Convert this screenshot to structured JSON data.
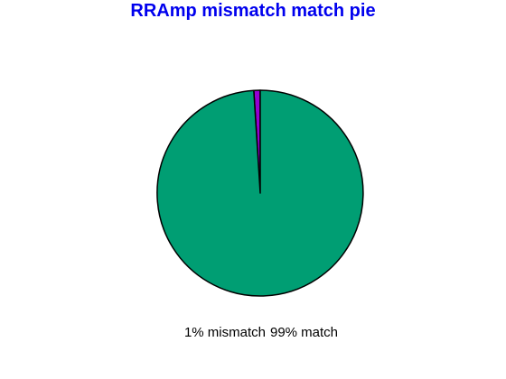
{
  "colors": {
    "title": "#0000ee",
    "mismatch": "#9400d3",
    "match": "#009e73",
    "outline": "#000000"
  },
  "chart_data": {
    "type": "pie",
    "title": "RRAmp mismatch match  pie",
    "slices": [
      {
        "label": "1% mismatch",
        "value": 1,
        "color": "#9400d3"
      },
      {
        "label": "99% match",
        "value": 99,
        "color": "#009e73"
      }
    ],
    "legend": "bottom"
  }
}
